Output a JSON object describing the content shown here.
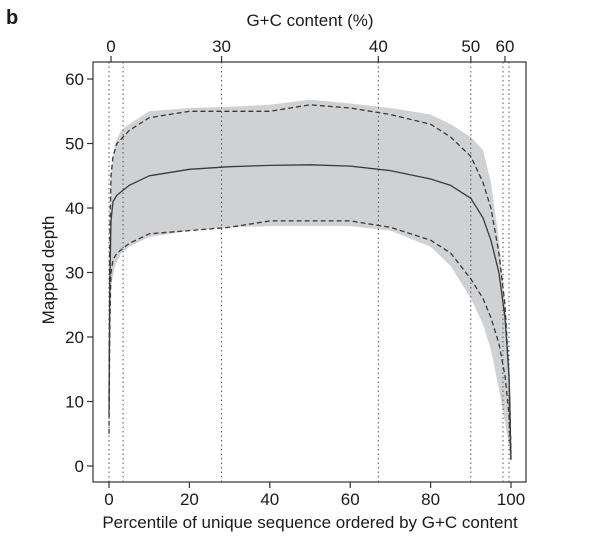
{
  "chart_data": {
    "type": "line",
    "panel_label": "b",
    "xlabel": "Percentile of unique sequence ordered by G+C content",
    "ylabel": "Mapped depth",
    "top_xlabel": "G+C content (%)",
    "xlim": [
      0,
      100
    ],
    "ylim": [
      0,
      60
    ],
    "x_ticks": [
      "0",
      "20",
      "40",
      "60",
      "80",
      "100"
    ],
    "y_ticks": [
      "0",
      "10",
      "20",
      "30",
      "40",
      "50",
      "60"
    ],
    "top_axis": {
      "ticks": [
        {
          "label": "0",
          "percentile": 0.5
        },
        {
          "label": "30",
          "percentile": 28
        },
        {
          "label": "40",
          "percentile": 67
        },
        {
          "label": "50",
          "percentile": 90
        },
        {
          "label": "60",
          "percentile": 98.5
        }
      ],
      "guide_lines_at_percentile": [
        0,
        3.5,
        28,
        67,
        90,
        98,
        99.5
      ]
    },
    "grid": false,
    "legend": "none",
    "band": {
      "color": "#d0d1d3",
      "upper": [
        [
          0,
          20
        ],
        [
          0.5,
          45
        ],
        [
          1.5,
          50
        ],
        [
          3,
          52
        ],
        [
          5,
          53
        ],
        [
          10,
          55
        ],
        [
          20,
          55.5
        ],
        [
          30,
          55.7
        ],
        [
          40,
          56
        ],
        [
          50,
          56.8
        ],
        [
          60,
          56.2
        ],
        [
          70,
          55.5
        ],
        [
          80,
          54.5
        ],
        [
          85,
          53
        ],
        [
          90,
          51
        ],
        [
          93,
          49
        ],
        [
          95,
          44
        ],
        [
          97,
          35
        ],
        [
          99,
          22
        ],
        [
          100,
          10
        ]
      ],
      "lower": [
        [
          0,
          8
        ],
        [
          0.5,
          28
        ],
        [
          1.5,
          31
        ],
        [
          3,
          33
        ],
        [
          5,
          34
        ],
        [
          10,
          35.5
        ],
        [
          20,
          36.5
        ],
        [
          30,
          37
        ],
        [
          40,
          37.2
        ],
        [
          50,
          37.2
        ],
        [
          60,
          37.2
        ],
        [
          70,
          36.5
        ],
        [
          80,
          34
        ],
        [
          85,
          31
        ],
        [
          90,
          26
        ],
        [
          93,
          22
        ],
        [
          95,
          18
        ],
        [
          97,
          12
        ],
        [
          99,
          5
        ],
        [
          100,
          0.5
        ]
      ]
    },
    "series": [
      {
        "role": "median",
        "style": "solid",
        "color": "#3a3a3a",
        "points": [
          [
            0,
            8
          ],
          [
            0.2,
            28
          ],
          [
            0.5,
            38
          ],
          [
            1,
            41
          ],
          [
            2,
            42
          ],
          [
            5,
            43.5
          ],
          [
            10,
            45
          ],
          [
            20,
            46
          ],
          [
            30,
            46.4
          ],
          [
            40,
            46.6
          ],
          [
            50,
            46.7
          ],
          [
            60,
            46.5
          ],
          [
            70,
            45.8
          ],
          [
            80,
            44.5
          ],
          [
            85,
            43.5
          ],
          [
            90,
            41.5
          ],
          [
            93,
            38.5
          ],
          [
            95,
            35
          ],
          [
            97,
            30
          ],
          [
            98.5,
            23
          ],
          [
            99.5,
            14
          ],
          [
            100,
            1
          ]
        ]
      },
      {
        "role": "upper-quantile",
        "style": "dashed",
        "color": "#3a3a3a",
        "points": [
          [
            0,
            10
          ],
          [
            0.2,
            35
          ],
          [
            0.5,
            45
          ],
          [
            1,
            48
          ],
          [
            2,
            50
          ],
          [
            5,
            52
          ],
          [
            10,
            54
          ],
          [
            20,
            55
          ],
          [
            30,
            55
          ],
          [
            40,
            55
          ],
          [
            50,
            56
          ],
          [
            60,
            55.5
          ],
          [
            70,
            54.5
          ],
          [
            80,
            53
          ],
          [
            85,
            51
          ],
          [
            90,
            48
          ],
          [
            93,
            44
          ],
          [
            95,
            40
          ],
          [
            97,
            33
          ],
          [
            98.5,
            25
          ],
          [
            99.5,
            14
          ],
          [
            100,
            2
          ]
        ]
      },
      {
        "role": "lower-quantile",
        "style": "dashed",
        "color": "#3a3a3a",
        "points": [
          [
            0,
            5
          ],
          [
            0.2,
            22
          ],
          [
            0.5,
            30
          ],
          [
            1,
            32
          ],
          [
            2,
            33
          ],
          [
            5,
            34.5
          ],
          [
            10,
            36
          ],
          [
            20,
            36.5
          ],
          [
            30,
            37
          ],
          [
            40,
            38
          ],
          [
            50,
            38
          ],
          [
            60,
            38
          ],
          [
            70,
            37
          ],
          [
            80,
            35
          ],
          [
            85,
            33
          ],
          [
            90,
            29
          ],
          [
            93,
            26
          ],
          [
            95,
            23
          ],
          [
            97,
            19
          ],
          [
            98.5,
            14
          ],
          [
            99.5,
            8
          ],
          [
            100,
            1
          ]
        ]
      }
    ]
  }
}
